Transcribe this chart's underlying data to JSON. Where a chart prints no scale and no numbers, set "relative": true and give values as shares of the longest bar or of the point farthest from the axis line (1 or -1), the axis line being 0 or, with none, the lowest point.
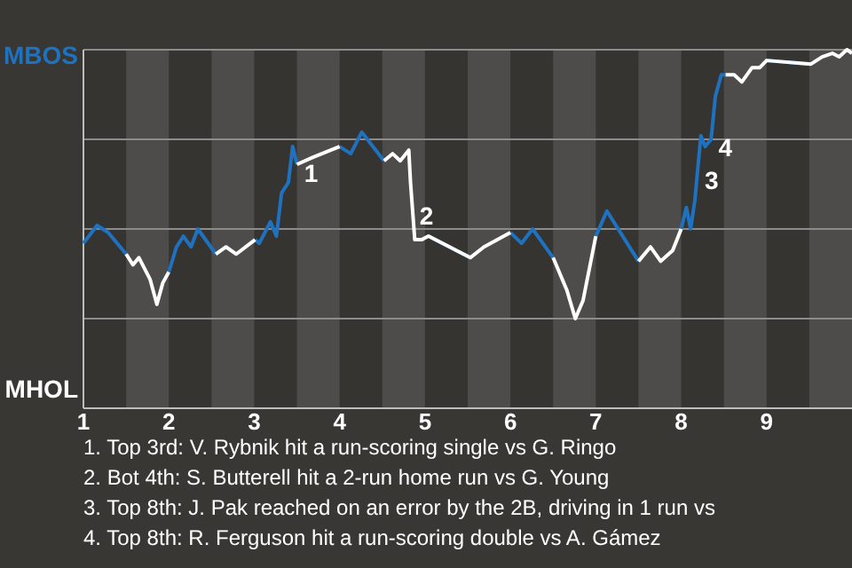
{
  "chart_data": {
    "type": "line",
    "relative": true,
    "grid": "y",
    "legend": "left",
    "x": [
      1.0,
      1.16,
      1.29,
      1.5,
      1.58,
      1.65,
      1.78,
      1.86,
      1.93,
      2.0,
      2.09,
      2.17,
      2.26,
      2.34,
      2.55,
      2.67,
      2.79,
      3.01,
      3.06,
      3.19,
      3.26,
      3.32,
      3.4,
      3.45,
      3.5,
      3.69,
      4.0,
      4.13,
      4.26,
      4.39,
      4.52,
      4.62,
      4.71,
      4.81,
      4.83,
      4.88,
      4.96,
      5.04,
      5.53,
      5.69,
      6.0,
      6.13,
      6.26,
      6.5,
      6.66,
      6.76,
      6.85,
      7.0,
      7.13,
      7.5,
      7.64,
      7.76,
      7.9,
      8.0,
      8.06,
      8.11,
      8.16,
      8.23,
      8.28,
      8.35,
      8.4,
      8.47,
      8.52,
      8.62,
      8.71,
      8.83,
      8.92,
      9.0,
      9.52,
      9.65,
      9.77,
      9.85,
      9.94,
      10.0
    ],
    "xlim": [
      1,
      10
    ],
    "xticks": [
      1,
      2,
      3,
      4,
      5,
      6,
      7,
      8,
      9
    ],
    "series": [
      {
        "name": "MBOS",
        "color": "#1f72c0",
        "values": [
          0.46,
          0.51,
          0.49,
          0.43,
          null,
          null,
          null,
          null,
          null,
          0.38,
          0.45,
          0.48,
          0.45,
          0.5,
          0.43,
          null,
          null,
          0.47,
          0.46,
          0.52,
          0.48,
          0.6,
          0.63,
          0.73,
          0.68,
          null,
          0.73,
          0.71,
          0.77,
          0.73,
          0.69,
          null,
          null,
          null,
          null,
          null,
          null,
          0.48,
          0.42,
          null,
          0.49,
          0.46,
          0.5,
          0.42,
          null,
          null,
          null,
          0.48,
          0.55,
          0.41,
          null,
          null,
          null,
          0.5,
          0.56,
          0.5,
          0.58,
          0.76,
          0.73,
          0.75,
          0.87,
          0.93,
          0.93,
          null,
          null,
          null,
          null,
          0.97,
          0.96,
          null,
          null,
          null,
          null,
          null
        ]
      },
      {
        "name": "MHOL",
        "color": "#ffffff",
        "values": [
          null,
          null,
          null,
          0.43,
          0.4,
          0.42,
          0.36,
          0.29,
          0.35,
          0.38,
          null,
          null,
          null,
          null,
          0.43,
          0.45,
          0.43,
          0.47,
          null,
          null,
          null,
          null,
          null,
          null,
          0.68,
          0.7,
          0.73,
          null,
          null,
          null,
          0.69,
          0.71,
          0.69,
          0.72,
          0.63,
          0.47,
          0.47,
          0.48,
          0.42,
          0.45,
          0.49,
          null,
          null,
          0.42,
          0.33,
          0.25,
          0.3,
          0.48,
          null,
          0.41,
          0.45,
          0.41,
          0.44,
          0.5,
          null,
          null,
          null,
          null,
          null,
          null,
          null,
          null,
          0.93,
          0.93,
          0.91,
          0.95,
          0.95,
          0.97,
          0.96,
          0.98,
          0.99,
          0.98,
          1.0,
          0.99
        ]
      }
    ],
    "bands": [
      {
        "axis": "x",
        "from": 1.5,
        "to": 2,
        "color": "#4d4c4a"
      },
      {
        "axis": "x",
        "from": 2.5,
        "to": 3,
        "color": "#4d4c4a"
      },
      {
        "axis": "x",
        "from": 3.5,
        "to": 4,
        "color": "#4d4c4a"
      },
      {
        "axis": "x",
        "from": 4.5,
        "to": 5,
        "color": "#4d4c4a"
      },
      {
        "axis": "x",
        "from": 5.5,
        "to": 6,
        "color": "#4d4c4a"
      },
      {
        "axis": "x",
        "from": 6.5,
        "to": 7,
        "color": "#4d4c4a"
      },
      {
        "axis": "x",
        "from": 7.5,
        "to": 8,
        "color": "#4d4c4a"
      },
      {
        "axis": "x",
        "from": 8.5,
        "to": 9,
        "color": "#4d4c4a"
      },
      {
        "axis": "x",
        "from": 9.5,
        "to": 10,
        "color": "#4d4c4a"
      }
    ],
    "annotations": [
      {
        "text": "1",
        "x": 3.5,
        "y": 0.68
      },
      {
        "text": "2",
        "x": 4.85,
        "y": 0.56
      },
      {
        "text": "3",
        "x": 8.19,
        "y": 0.66
      },
      {
        "text": "4",
        "x": 8.35,
        "y": 0.75
      },
      "1. Top 3rd: V. Rybnik hit a run-scoring single vs G. Ringo",
      "2. Bot 4th: S. Butterell hit a 2-run home run vs G. Young",
      "3. Top 8th: J. Pak reached on an error by the 2B, driving in 1 run vs",
      "4. Top 8th: R. Ferguson hit a run-scoring double vs A. Gámez"
    ]
  }
}
